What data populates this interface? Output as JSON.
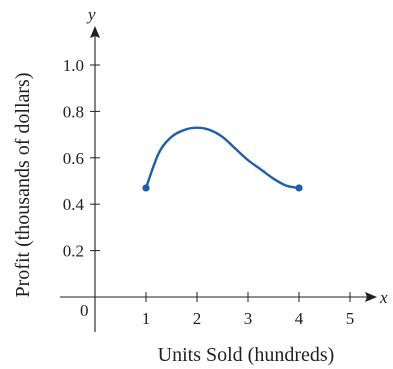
{
  "chart_data": {
    "type": "line",
    "title": "",
    "xlabel": "Units Sold (hundreds)",
    "ylabel": "Profit (thousands of dollars)",
    "x_axis_letter": "x",
    "y_axis_letter": "y",
    "origin_label": "0",
    "xlim": [
      0,
      5.5
    ],
    "ylim": [
      0,
      1.15
    ],
    "x_ticks": [
      1,
      2,
      3,
      4,
      5
    ],
    "x_tick_labels": [
      "1",
      "2",
      "3",
      "4",
      "5"
    ],
    "y_ticks": [
      0.2,
      0.4,
      0.6,
      0.8,
      1.0
    ],
    "y_tick_labels": [
      "0.2",
      "0.4",
      "0.6",
      "0.8",
      "1.0"
    ],
    "grid": false,
    "line_color": "#1d5fa8",
    "series": [
      {
        "x": [
          1,
          1.25,
          1.5,
          1.75,
          2,
          2.25,
          2.5,
          2.75,
          3,
          3.25,
          3.5,
          3.75,
          4
        ],
        "y": [
          0.47,
          0.62,
          0.69,
          0.72,
          0.73,
          0.72,
          0.69,
          0.64,
          0.59,
          0.55,
          0.51,
          0.48,
          0.47
        ],
        "endpoints": [
          [
            1,
            0.47
          ],
          [
            4,
            0.47
          ]
        ]
      }
    ]
  }
}
